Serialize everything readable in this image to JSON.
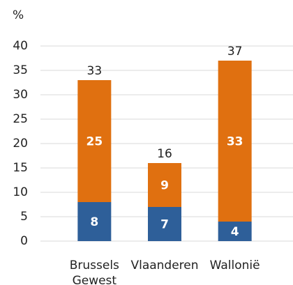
{
  "chart_data": {
    "type": "stacked_bar",
    "y_label": "%",
    "categories": [
      "Brussels Gewest",
      "Vlaanderen",
      "Wallonië"
    ],
    "series": [
      {
        "color": "#2e5f99",
        "values": [
          8,
          7,
          4
        ]
      },
      {
        "color": "#e07010",
        "values": [
          25,
          9,
          33
        ]
      }
    ],
    "totals": [
      33,
      16,
      37
    ],
    "ylim": [
      0,
      40
    ],
    "yticks": [
      0,
      5,
      10,
      15,
      20,
      25,
      30,
      35,
      40
    ],
    "grid": true
  }
}
